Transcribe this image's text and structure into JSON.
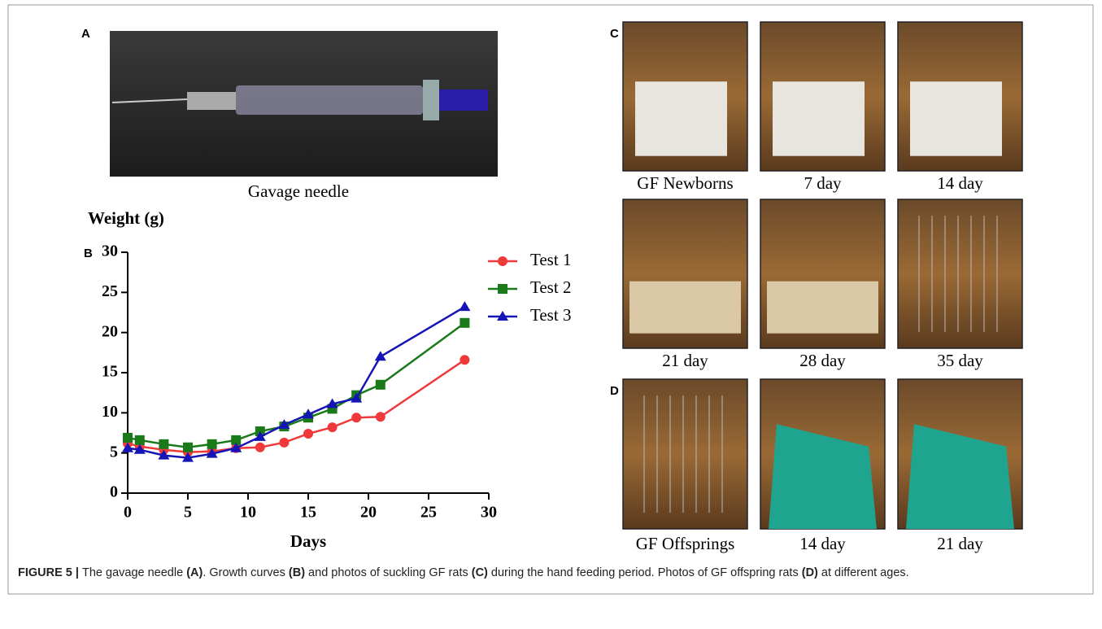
{
  "panels": {
    "a": {
      "label": "A",
      "caption": "Gavage needle"
    },
    "b": {
      "label": "B"
    },
    "c": {
      "label": "C",
      "photos": [
        "GF Newborns",
        "7 day",
        "14 day",
        "21 day",
        "28 day",
        "35 day"
      ]
    },
    "d": {
      "label": "D",
      "photos": [
        "GF Offsprings",
        "14 day",
        "21 day"
      ]
    }
  },
  "chart_data": {
    "type": "line",
    "y_label": "Weight (g)",
    "x_label": "Days",
    "x": [
      0,
      1,
      3,
      5,
      7,
      9,
      11,
      13,
      15,
      17,
      19,
      21,
      28
    ],
    "series": [
      {
        "name": "Test 1",
        "color": "#f0393b",
        "marker": "circle",
        "values": [
          6.2,
          5.8,
          5.4,
          5.1,
          5.2,
          5.6,
          5.7,
          6.3,
          7.4,
          8.2,
          9.4,
          9.5,
          16.6
        ]
      },
      {
        "name": "Test 2",
        "color": "#1a7a1a",
        "marker": "square",
        "values": [
          6.9,
          6.6,
          6.1,
          5.7,
          6.1,
          6.6,
          7.7,
          8.3,
          9.4,
          10.5,
          12.2,
          13.5,
          21.2
        ]
      },
      {
        "name": "Test 3",
        "color": "#1515b5",
        "marker": "triangle",
        "values": [
          5.6,
          5.4,
          4.7,
          4.4,
          4.9,
          5.6,
          7.0,
          8.5,
          9.8,
          11.1,
          11.8,
          17.0,
          23.2
        ]
      }
    ],
    "xlim": [
      0,
      30
    ],
    "ylim": [
      0,
      30
    ],
    "xticks": [
      0,
      5,
      10,
      15,
      20,
      25,
      30
    ],
    "yticks": [
      0,
      5,
      10,
      15,
      20,
      25,
      30
    ],
    "legend": "upper right"
  },
  "figure_caption": [
    {
      "text": "FIGURE 5 | ",
      "bold": true
    },
    {
      "text": "The gavage needle ",
      "bold": false
    },
    {
      "text": "(A)",
      "bold": true
    },
    {
      "text": ". Growth curves ",
      "bold": false
    },
    {
      "text": "(B)",
      "bold": true
    },
    {
      "text": " and photos of suckling GF rats ",
      "bold": false
    },
    {
      "text": "(C)",
      "bold": true
    },
    {
      "text": " during the hand feeding period. Photos of GF offspring rats ",
      "bold": false
    },
    {
      "text": "(D)",
      "bold": true
    },
    {
      "text": " at different ages.",
      "bold": false
    }
  ]
}
